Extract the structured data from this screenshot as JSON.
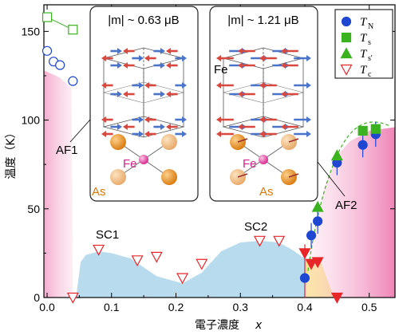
{
  "chart_data": {
    "type": "scatter",
    "xlabel_text": "電子濃度",
    "xlabel_var": "x",
    "ylabel": "温度（K）",
    "xlim": [
      -0.005,
      0.54
    ],
    "ylim": [
      0,
      165
    ],
    "x_ticks": [
      0.0,
      0.1,
      0.2,
      0.3,
      0.4,
      0.5
    ],
    "x_tick_labels": [
      "0.0",
      "0.1",
      "0.2",
      "0.3",
      "0.4",
      "0.5"
    ],
    "y_ticks": [
      0,
      50,
      100,
      150
    ],
    "y_tick_labels": [
      "0",
      "50",
      "100",
      "150"
    ],
    "legend": {
      "placement": "top-right",
      "entries": [
        {
          "symbol": "filled-circle",
          "color": "#1f47d1",
          "label": "T",
          "sub": "N"
        },
        {
          "symbol": "filled-square",
          "color": "#3bb21f",
          "label": "T",
          "sub": "s"
        },
        {
          "symbol": "filled-triangle-up",
          "color": "#3bb21f",
          "label": "T",
          "sub": "s'"
        },
        {
          "symbol": "triangle-down",
          "color": "#e8262a",
          "label": "T",
          "sub": "c"
        }
      ]
    },
    "series": [
      {
        "name": "T_N",
        "marker": "circle",
        "color": "#1f47d1",
        "points": [
          [
            0.0,
            139
          ],
          [
            0.01,
            133
          ],
          [
            0.02,
            131
          ],
          [
            0.04,
            122
          ]
        ],
        "filled": false
      },
      {
        "name": "T_N",
        "marker": "circle",
        "color": "#1f47d1",
        "points": [
          [
            0.4,
            11
          ],
          [
            0.41,
            35
          ],
          [
            0.42,
            43
          ],
          [
            0.45,
            76
          ],
          [
            0.49,
            86
          ],
          [
            0.51,
            92
          ]
        ],
        "filled": true
      },
      {
        "name": "T_s",
        "marker": "square",
        "color": "#3bb21f",
        "points": [
          [
            0.0,
            158
          ],
          [
            0.04,
            151
          ]
        ],
        "filled": false
      },
      {
        "name": "T_s",
        "marker": "square",
        "color": "#3bb21f",
        "points": [
          [
            0.49,
            94
          ],
          [
            0.51,
            95
          ]
        ],
        "filled": true
      },
      {
        "name": "T_s'",
        "marker": "triangle-up",
        "color": "#3bb21f",
        "points": [
          [
            0.42,
            51
          ],
          [
            0.45,
            80
          ]
        ],
        "filled": true
      },
      {
        "name": "T_c",
        "marker": "triangle-down",
        "color": "#e8262a",
        "points": [
          [
            0.04,
            0
          ],
          [
            0.08,
            27
          ],
          [
            0.14,
            21
          ],
          [
            0.17,
            23
          ],
          [
            0.21,
            11
          ],
          [
            0.24,
            19
          ],
          [
            0.33,
            32
          ],
          [
            0.36,
            32
          ]
        ],
        "filled": false
      },
      {
        "name": "T_c",
        "marker": "triangle-down",
        "color": "#e8262a",
        "points": [
          [
            0.4,
            25
          ],
          [
            0.41,
            19
          ],
          [
            0.42,
            20
          ],
          [
            0.45,
            0
          ]
        ],
        "filled": true
      }
    ],
    "phase_labels": [
      "AF1",
      "SC1",
      "SC2",
      "AF2"
    ],
    "colors": {
      "af_pink": "#f6b8d6",
      "sc_blue": "#b8dcee",
      "sc_yellow": "#fbe77a"
    }
  },
  "insets": {
    "left": {
      "moment_label": "|m| ~ 0.63 μB",
      "fe_label": "Fe",
      "as_label": "As"
    },
    "right": {
      "moment_label": "|m| ~ 1.21 μB",
      "fe_label": "Fe",
      "as_label": "As",
      "fe_top_label": "Fe"
    }
  }
}
